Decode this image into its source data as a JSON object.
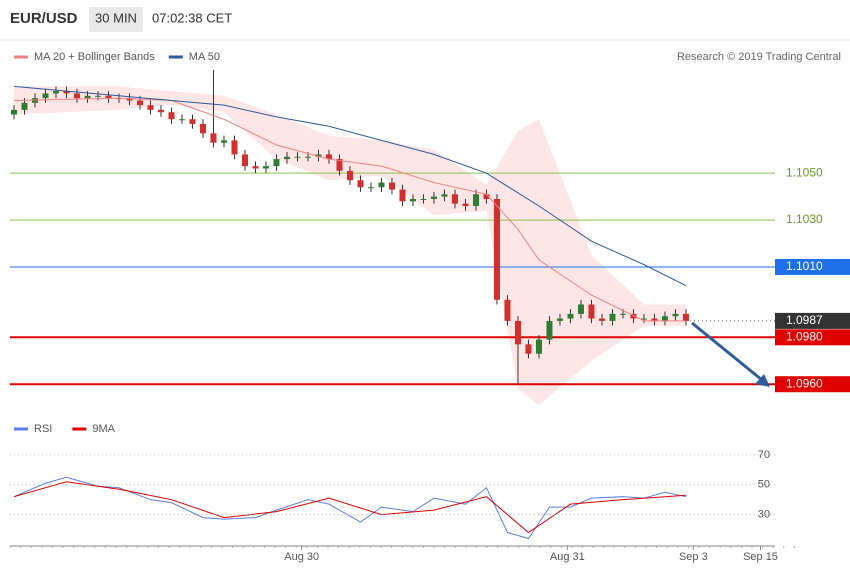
{
  "chart_data": [
    {
      "type": "candlestick",
      "title": "EUR/USD",
      "timeframe": "30 MIN",
      "time": "07:02:38 CET",
      "source": "Research © 2019 Trading Central",
      "xlim": [
        -0.38,
        72.48
      ],
      "ylim": [
        1.0949,
        1.1094
      ],
      "candles": {
        "up_color": "#2e7d32",
        "down_color": "#d32f2f",
        "open": [
          1.1075,
          1.1077,
          1.108,
          1.1082,
          1.1084,
          1.1085,
          1.1084,
          1.1082,
          1.1083,
          1.1083,
          1.1082,
          1.1082,
          1.1081,
          1.1079,
          1.1077,
          1.1076,
          1.1073,
          1.1073,
          1.1071,
          1.1067,
          1.1063,
          1.1064,
          1.1058,
          1.1053,
          1.1052,
          1.1053,
          1.1056,
          1.1057,
          1.1057,
          1.1057,
          1.1058,
          1.1056,
          1.1051,
          1.1047,
          1.1044,
          1.1044,
          1.1046,
          1.1043,
          1.1038,
          1.1039,
          1.1039,
          1.104,
          1.1041,
          1.1037,
          1.1036,
          1.1041,
          1.1039,
          1.0996,
          1.0987,
          1.0977,
          1.0973,
          1.0979,
          1.0987,
          1.0988,
          1.099,
          1.0994,
          1.0988,
          1.0987,
          1.099,
          1.099,
          1.0988,
          1.0988,
          1.0987,
          1.0989,
          1.099
        ],
        "high": [
          1.1079,
          1.1082,
          1.1084,
          1.1086,
          1.1087,
          1.1087,
          1.1086,
          1.1085,
          1.1085,
          1.1085,
          1.1084,
          1.1084,
          1.1083,
          1.1081,
          1.1079,
          1.1078,
          1.1075,
          1.1075,
          1.1073,
          1.1094,
          1.1066,
          1.1066,
          1.106,
          1.1055,
          1.1055,
          1.1058,
          1.1059,
          1.1059,
          1.1059,
          1.106,
          1.106,
          1.1058,
          1.1053,
          1.1049,
          1.1046,
          1.1048,
          1.1048,
          1.1045,
          1.1041,
          1.1041,
          1.1042,
          1.1043,
          1.1043,
          1.1039,
          1.1043,
          1.1043,
          1.1041,
          1.0998,
          1.0989,
          1.0979,
          1.0981,
          1.0989,
          1.099,
          1.0992,
          1.0996,
          1.0996,
          1.099,
          1.0992,
          1.0992,
          1.0992,
          1.099,
          1.099,
          1.0991,
          1.0992,
          1.0992
        ],
        "low": [
          1.1073,
          1.1075,
          1.1078,
          1.108,
          1.1082,
          1.1082,
          1.108,
          1.108,
          1.1081,
          1.108,
          1.108,
          1.1079,
          1.1077,
          1.1075,
          1.1074,
          1.1071,
          1.1071,
          1.1069,
          1.1065,
          1.1061,
          1.1061,
          1.1056,
          1.1051,
          1.105,
          1.105,
          1.1051,
          1.1054,
          1.1055,
          1.1055,
          1.1055,
          1.1054,
          1.1049,
          1.1045,
          1.1042,
          1.1042,
          1.1042,
          1.1041,
          1.1036,
          1.1036,
          1.1037,
          1.1037,
          1.1038,
          1.1035,
          1.1034,
          1.1034,
          1.1037,
          1.0994,
          1.0985,
          1.096,
          1.0971,
          1.0971,
          1.0977,
          1.0985,
          1.0986,
          1.0988,
          1.0986,
          1.0985,
          1.0985,
          1.0988,
          1.0986,
          1.0986,
          1.0985,
          1.0985,
          1.0987,
          1.0985
        ],
        "close": [
          1.1077,
          1.108,
          1.1082,
          1.1084,
          1.1085,
          1.1084,
          1.1082,
          1.1083,
          1.1083,
          1.1082,
          1.1082,
          1.1081,
          1.1079,
          1.1077,
          1.1076,
          1.1073,
          1.1073,
          1.1071,
          1.1067,
          1.1063,
          1.1064,
          1.1058,
          1.1053,
          1.1052,
          1.1053,
          1.1056,
          1.1057,
          1.1057,
          1.1057,
          1.1058,
          1.1056,
          1.1051,
          1.1047,
          1.1044,
          1.1044,
          1.1046,
          1.1043,
          1.1038,
          1.1039,
          1.1039,
          1.104,
          1.1041,
          1.1037,
          1.1036,
          1.1041,
          1.1039,
          1.0996,
          1.0987,
          1.0977,
          1.0973,
          1.0979,
          1.0987,
          1.0988,
          1.099,
          1.0994,
          1.0988,
          1.0987,
          1.099,
          1.099,
          1.0988,
          1.0988,
          1.0987,
          1.0989,
          1.099,
          1.0987
        ]
      },
      "series": [
        {
          "name": "MA 20 + Bollinger Bands",
          "color": "#f08080",
          "band_color": "#ffe0e0",
          "x": [
            0,
            10,
            15,
            20,
            25,
            30,
            35,
            40,
            45,
            48,
            50,
            55,
            60,
            64
          ],
          "values": [
            1.1081,
            1.1082,
            1.1081,
            1.1073,
            1.1062,
            1.1056,
            1.1053,
            1.1046,
            1.1041,
            1.1026,
            1.1013,
            1.0998,
            1.0987,
            1.0987
          ],
          "upper": [
            1.1087,
            1.1087,
            1.1085,
            1.1083,
            1.1075,
            1.1066,
            1.1064,
            1.106,
            1.1045,
            1.1068,
            1.1073,
            1.1015,
            1.0994,
            1.0994
          ],
          "lower": [
            1.1075,
            1.1077,
            1.1079,
            1.1076,
            1.1056,
            1.1047,
            1.1049,
            1.1032,
            1.1034,
            1.0958,
            1.0951,
            1.097,
            1.0985,
            1.0985
          ]
        },
        {
          "name": "MA 50",
          "color": "#2a5a9a",
          "x": [
            0,
            5,
            10,
            15,
            20,
            25,
            30,
            35,
            40,
            45,
            50,
            55,
            60,
            64
          ],
          "values": [
            1.1087,
            1.1085,
            1.1083,
            1.1081,
            1.1079,
            1.1074,
            1.107,
            1.1064,
            1.1058,
            1.105,
            1.1036,
            1.1021,
            1.1011,
            1.1002
          ]
        }
      ],
      "levels": [
        {
          "value": 1.105,
          "label": "1.1050",
          "color": "#8bc34a",
          "style": "solid",
          "boxed": false
        },
        {
          "value": 1.103,
          "label": "1.1030",
          "color": "#8bc34a",
          "style": "solid",
          "boxed": false
        },
        {
          "value": 1.101,
          "label": "1.1010",
          "color": "#1e6fe8",
          "style": "solid",
          "boxed": true
        },
        {
          "value": 1.0987,
          "label": "1.0987",
          "color": "#333333",
          "style": "dotted",
          "boxed": true
        },
        {
          "value": 1.098,
          "label": "1.0980",
          "color": "#e00000",
          "style": "solid",
          "boxed": true
        },
        {
          "value": 1.096,
          "label": "1.0960",
          "color": "#e00000",
          "style": "solid",
          "boxed": true
        }
      ]
    },
    {
      "type": "line",
      "xlim": [
        -0.38,
        72.48
      ],
      "ylim": [
        13,
        90
      ],
      "yticks": [
        30,
        50,
        70
      ],
      "grid": true,
      "xticks": [
        {
          "value": 27.4,
          "label": "Aug 30"
        },
        {
          "value": 52.7,
          "label": "Aug 31"
        },
        {
          "value": 64.7,
          "label": "Sep 3"
        },
        {
          "value": 71.1,
          "label": "Sep 15"
        }
      ],
      "series": [
        {
          "name": "RSI",
          "color": "#5b7fe0",
          "x": [
            0,
            3,
            5,
            8,
            10,
            13,
            15,
            18,
            20,
            23,
            25,
            28,
            30,
            33,
            35,
            38,
            40,
            43,
            45,
            47,
            49,
            51,
            53,
            55,
            58,
            60,
            62,
            64
          ],
          "values": [
            42,
            51,
            55,
            49,
            48,
            40,
            38,
            28,
            27,
            28,
            33,
            40,
            37,
            25,
            35,
            32,
            41,
            37,
            48,
            18,
            14,
            35,
            35,
            41,
            42,
            41,
            45,
            42
          ]
        },
        {
          "name": "9MA",
          "color": "#e00000",
          "x": [
            0,
            5,
            10,
            15,
            20,
            25,
            30,
            35,
            40,
            45,
            49,
            53,
            58,
            64
          ],
          "values": [
            42,
            52,
            47,
            40,
            28,
            32,
            41,
            30,
            33,
            42,
            18,
            37,
            40,
            43
          ]
        }
      ]
    }
  ]
}
